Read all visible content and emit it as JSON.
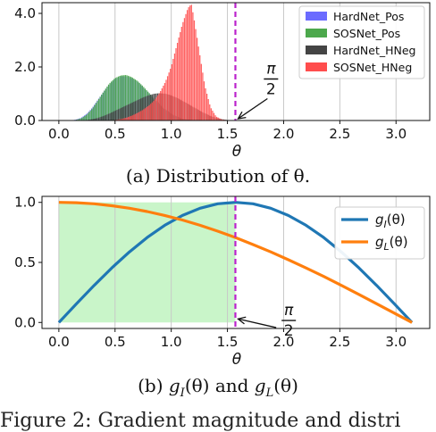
{
  "figure_caption_partial": "Figure 2: Gradient magnitude and distri",
  "chart_data": [
    {
      "type": "bar",
      "caption": "(a) Distribution of θ.",
      "xlabel": "θ",
      "xlim": [
        -0.15,
        3.3
      ],
      "ylim": [
        0,
        4.4
      ],
      "xticks": [
        "0.0",
        "0.5",
        "1.0",
        "1.5",
        "2.0",
        "2.5",
        "3.0"
      ],
      "xtick_values": [
        0,
        0.5,
        1.0,
        1.5,
        2.0,
        2.5,
        3.0
      ],
      "yticks": [
        "0.0",
        "2.0",
        "4.0"
      ],
      "ytick_values": [
        0,
        2,
        4
      ],
      "grid": "vertical",
      "legend_position": "top-right",
      "x": [
        0.1,
        0.15,
        0.2,
        0.25,
        0.3,
        0.35,
        0.4,
        0.45,
        0.5,
        0.55,
        0.6,
        0.65,
        0.7,
        0.75,
        0.8,
        0.85,
        0.9,
        0.95,
        1.0,
        1.05,
        1.1,
        1.15,
        1.18,
        1.2,
        1.25,
        1.3,
        1.35,
        1.4,
        1.45,
        1.5,
        1.55
      ],
      "series": [
        {
          "name": "HardNet_Pos",
          "color": "#6b6bff",
          "values": [
            0.0,
            0.03,
            0.1,
            0.25,
            0.48,
            0.78,
            1.08,
            1.35,
            1.55,
            1.65,
            1.65,
            1.58,
            1.45,
            1.25,
            1.02,
            0.8,
            0.58,
            0.4,
            0.25,
            0.14,
            0.07,
            0.03,
            0.02,
            0.01,
            0.0,
            0.0,
            0.0,
            0.0,
            0.0,
            0.0,
            0.0
          ]
        },
        {
          "name": "SOSNet_Pos",
          "color": "#4ca84c",
          "values": [
            0.0,
            0.02,
            0.08,
            0.22,
            0.45,
            0.76,
            1.08,
            1.38,
            1.58,
            1.68,
            1.7,
            1.62,
            1.48,
            1.28,
            1.05,
            0.82,
            0.6,
            0.41,
            0.26,
            0.15,
            0.07,
            0.03,
            0.02,
            0.01,
            0.0,
            0.0,
            0.0,
            0.0,
            0.0,
            0.0,
            0.0
          ]
        },
        {
          "name": "HardNet_HNeg",
          "color": "#444444",
          "values": [
            0.0,
            0.0,
            0.0,
            0.02,
            0.05,
            0.1,
            0.17,
            0.26,
            0.36,
            0.46,
            0.56,
            0.66,
            0.76,
            0.86,
            0.94,
            1.0,
            1.02,
            1.0,
            0.94,
            0.85,
            0.74,
            0.62,
            0.55,
            0.5,
            0.38,
            0.27,
            0.17,
            0.1,
            0.05,
            0.02,
            0.0
          ]
        },
        {
          "name": "SOSNet_HNeg",
          "color": "#ff4d4d",
          "values": [
            0.0,
            0.0,
            0.0,
            0.0,
            0.0,
            0.0,
            0.0,
            0.0,
            0.02,
            0.05,
            0.1,
            0.18,
            0.28,
            0.4,
            0.55,
            0.75,
            1.05,
            1.45,
            2.0,
            2.8,
            3.6,
            4.2,
            4.35,
            3.9,
            2.6,
            1.3,
            0.5,
            0.15,
            0.04,
            0.01,
            0.0
          ]
        }
      ],
      "annotations": [
        {
          "label_num": "π",
          "label_den": "2",
          "points_to_x": 1.5708,
          "points_to_y": 0.0,
          "text_x": 1.84,
          "text_y": 1.55
        },
        {
          "type": "vline",
          "x": 1.5708,
          "style": "dashed",
          "color": "#bb22cc"
        }
      ]
    },
    {
      "type": "line",
      "caption_text": [
        "(b) ",
        " and "
      ],
      "caption_terms": [
        {
          "f": "g",
          "sub": "I",
          "arg": "(θ)"
        },
        {
          "f": "g",
          "sub": "L",
          "arg": "(θ)"
        }
      ],
      "xlabel": "θ",
      "xlim": [
        -0.15,
        3.3
      ],
      "ylim": [
        -0.05,
        1.05
      ],
      "xticks": [
        "0.0",
        "0.5",
        "1.0",
        "1.5",
        "2.0",
        "2.5",
        "3.0"
      ],
      "xtick_values": [
        0,
        0.5,
        1.0,
        1.5,
        2.0,
        2.5,
        3.0
      ],
      "yticks": [
        "0.0",
        "0.5",
        "1.0"
      ],
      "ytick_values": [
        0,
        0.5,
        1.0
      ],
      "grid": "vertical",
      "legend_position": "top-right",
      "x": [
        0.0,
        0.1571,
        0.3142,
        0.4712,
        0.6283,
        0.7854,
        0.9425,
        1.0996,
        1.2566,
        1.4137,
        1.5708,
        1.7279,
        1.885,
        2.042,
        2.1991,
        2.3562,
        2.5133,
        2.6704,
        2.8274,
        2.9845,
        3.1416
      ],
      "series": [
        {
          "name_f": "g",
          "name_sub": "I",
          "name_arg": "(θ)",
          "color": "#1f77b4",
          "values": [
            0.0,
            0.156,
            0.309,
            0.454,
            0.588,
            0.707,
            0.809,
            0.891,
            0.951,
            0.988,
            1.0,
            0.988,
            0.951,
            0.891,
            0.809,
            0.707,
            0.588,
            0.454,
            0.309,
            0.156,
            0.0
          ]
        },
        {
          "name_f": "g",
          "name_sub": "L",
          "name_arg": "(θ)",
          "color": "#ff7f0e",
          "values": [
            1.0,
            0.997,
            0.988,
            0.972,
            0.951,
            0.924,
            0.891,
            0.853,
            0.809,
            0.76,
            0.707,
            0.649,
            0.588,
            0.522,
            0.454,
            0.383,
            0.309,
            0.233,
            0.156,
            0.078,
            0.0
          ]
        }
      ],
      "shaded_region": {
        "x0": 0.0,
        "x1": 1.5708,
        "y0": 0.0,
        "y1": 1.0,
        "color": "#c9f5c9"
      },
      "annotations": [
        {
          "label_num": "π",
          "label_den": "2",
          "points_to_x": 1.5708,
          "points_to_y": 0.0,
          "text_x": 1.95,
          "text_y": 0.18
        },
        {
          "type": "vline",
          "x": 1.5708,
          "style": "dashed",
          "color": "#bb22cc"
        }
      ]
    }
  ]
}
